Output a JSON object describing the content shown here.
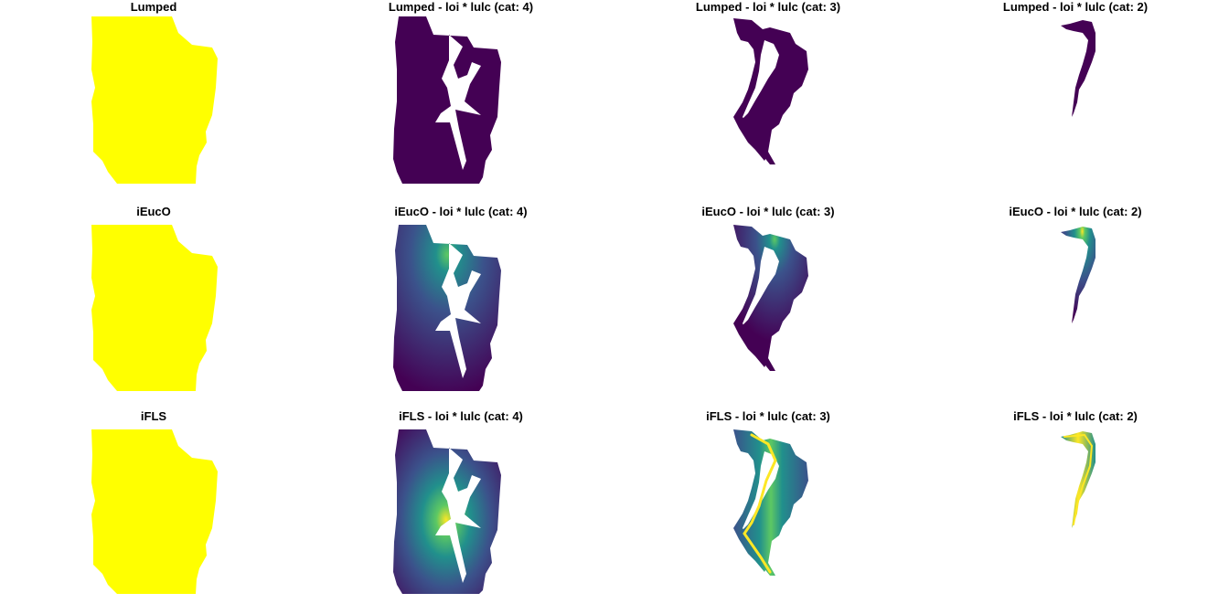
{
  "figure": {
    "rows": [
      {
        "method": "Lumped",
        "panels": [
          {
            "title": "Lumped",
            "style": "uniform"
          },
          {
            "title": "Lumped - loi * lulc (cat: 4)",
            "style": "uniform"
          },
          {
            "title": "Lumped - loi * lulc (cat: 3)",
            "style": "uniform"
          },
          {
            "title": "Lumped - loi * lulc (cat: 2)",
            "style": "uniform"
          }
        ]
      },
      {
        "method": "iEucO",
        "panels": [
          {
            "title": "iEucO",
            "style": "uniform"
          },
          {
            "title": "iEucO - loi * lulc (cat: 4)",
            "style": "outlet-gradient"
          },
          {
            "title": "iEucO - loi * lulc (cat: 3)",
            "style": "outlet-gradient"
          },
          {
            "title": "iEucO - loi * lulc (cat: 2)",
            "style": "outlet-gradient"
          }
        ]
      },
      {
        "method": "iFLS",
        "panels": [
          {
            "title": "iFLS",
            "style": "uniform"
          },
          {
            "title": "iFLS - loi * lulc (cat: 4)",
            "style": "stream-gradient"
          },
          {
            "title": "iFLS - loi * lulc (cat: 3)",
            "style": "stream-gradient"
          },
          {
            "title": "iFLS - loi * lulc (cat: 2)",
            "style": "stream-gradient"
          }
        ]
      }
    ]
  },
  "colors": {
    "full_extent": "#ffff00",
    "viridis_low": "#440154",
    "viridis_midlow": "#3b528b",
    "viridis_mid": "#21908c",
    "viridis_midhigh": "#5dc863",
    "viridis_high": "#fde725",
    "background": "#ffffff"
  }
}
